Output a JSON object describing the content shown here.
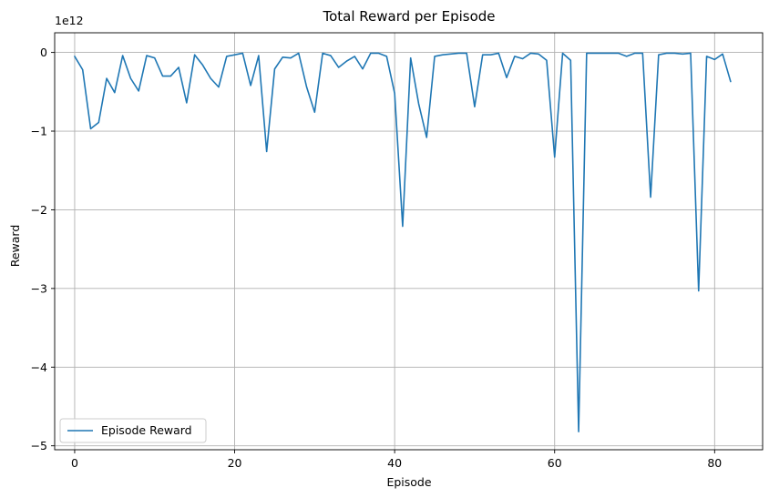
{
  "chart_data": {
    "type": "line",
    "title": "Total Reward per Episode",
    "xlabel": "Episode",
    "ylabel": "Reward",
    "y_scale_multiplier": "1e12",
    "xlim": [
      -2.5,
      86
    ],
    "ylim": [
      -5.05,
      0.25
    ],
    "x_ticks": [
      0,
      20,
      40,
      60,
      80
    ],
    "x_tick_labels": [
      "0",
      "20",
      "40",
      "60",
      "80"
    ],
    "y_ticks": [
      0,
      -1,
      -2,
      -3,
      -4,
      -5
    ],
    "y_tick_labels": [
      "0",
      "−1",
      "−2",
      "−3",
      "−4",
      "−5"
    ],
    "grid": true,
    "legend_position": "lower-left",
    "color": "#1f77b4",
    "series": [
      {
        "name": "Episode Reward",
        "x": [
          0,
          1,
          2,
          3,
          4,
          5,
          6,
          7,
          8,
          9,
          10,
          11,
          12,
          13,
          14,
          15,
          16,
          17,
          18,
          19,
          20,
          21,
          22,
          23,
          24,
          25,
          26,
          27,
          28,
          29,
          30,
          31,
          32,
          33,
          34,
          35,
          36,
          37,
          38,
          39,
          40,
          41,
          42,
          43,
          44,
          45,
          46,
          47,
          48,
          49,
          50,
          51,
          52,
          53,
          54,
          55,
          56,
          57,
          58,
          59,
          60,
          61,
          62,
          63,
          64,
          65,
          66,
          67,
          68,
          69,
          70,
          71,
          72,
          73,
          74,
          75,
          76,
          77,
          78,
          79,
          80,
          81,
          82
        ],
        "values": [
          -0.05,
          -0.22,
          -0.97,
          -0.89,
          -0.33,
          -0.51,
          -0.04,
          -0.33,
          -0.49,
          -0.04,
          -0.07,
          -0.3,
          -0.3,
          -0.19,
          -0.64,
          -0.03,
          -0.16,
          -0.33,
          -0.44,
          -0.05,
          -0.03,
          -0.01,
          -0.42,
          -0.04,
          -1.26,
          -0.21,
          -0.06,
          -0.07,
          -0.01,
          -0.44,
          -0.76,
          -0.01,
          -0.04,
          -0.19,
          -0.11,
          -0.05,
          -0.21,
          -0.01,
          -0.01,
          -0.05,
          -0.52,
          -2.21,
          -0.07,
          -0.65,
          -1.08,
          -0.05,
          -0.03,
          -0.02,
          -0.01,
          -0.01,
          -0.69,
          -0.03,
          -0.03,
          -0.01,
          -0.32,
          -0.05,
          -0.08,
          -0.01,
          -0.02,
          -0.1,
          -1.33,
          -0.01,
          -0.1,
          -4.82,
          -0.01,
          -0.01,
          -0.01,
          -0.01,
          -0.01,
          -0.05,
          -0.01,
          -0.01,
          -1.84,
          -0.03,
          -0.01,
          -0.01,
          -0.02,
          -0.01,
          -3.03,
          -0.05,
          -0.09,
          -0.02,
          -0.37
        ]
      }
    ]
  }
}
